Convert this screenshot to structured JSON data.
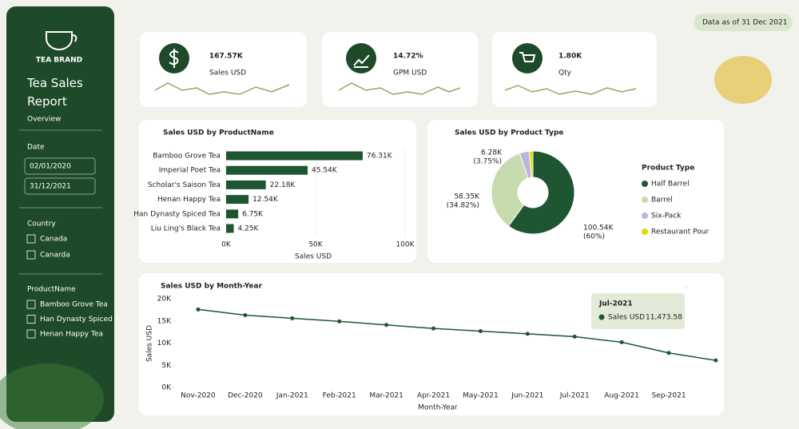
{
  "sidebar": {
    "brand": "TEA BRAND",
    "title": "Tea Sales Report",
    "subtitle": "Overview",
    "date_label": "Date",
    "date_from": "02/01/2020",
    "date_to": "31/12/2021",
    "country_label": "Country",
    "countries": [
      "Canada",
      "Canarda"
    ],
    "product_label": "ProductName",
    "products": [
      "Bamboo Grove Tea",
      "Han Dynasty Spiced T...",
      "Henan Happy Tea"
    ]
  },
  "badge": "Data as of 31 Dec 2021",
  "kpis": [
    {
      "value": "167.57K",
      "label": "Sales USD"
    },
    {
      "value": "14.72%",
      "label": "GPM USD"
    },
    {
      "value": "1.80K",
      "label": "Qty"
    }
  ],
  "bar_chart": {
    "type": "bar",
    "title": "Sales USD by ProductName",
    "xlabel": "Sales USD",
    "color": "#1e5631",
    "categories": [
      "Bamboo Grove Tea",
      "Imperial Poet Tea",
      "Scholar's Saison Tea",
      "Henan Happy Tea",
      "Han Dynasty Spiced Tea",
      "Liu Ling's Black Tea"
    ],
    "values": [
      76310,
      45540,
      22180,
      12540,
      6750,
      4250
    ],
    "value_labels": [
      "76.31K",
      "45.54K",
      "22.18K",
      "12.54K",
      "6.75K",
      "4.25K"
    ],
    "xlim": [
      0,
      100000
    ],
    "xticks": [
      {
        "value": 0,
        "label": "0K"
      },
      {
        "value": 50000,
        "label": "50K"
      },
      {
        "value": 100000,
        "label": "100K"
      }
    ]
  },
  "donut_chart": {
    "type": "donut",
    "title": "Sales USD by Product Type",
    "legend_title": "Product Type",
    "categories": [
      "Half Barrel",
      "Barrel",
      "Six-Pack",
      "Restaurant Pour"
    ],
    "values": [
      100540,
      58350,
      6280,
      2400
    ],
    "value_labels": [
      "100.54K",
      "58.35K",
      "6.28K",
      null
    ],
    "percent_labels": [
      "(60%)",
      "(34.82%)",
      "(3.75%)",
      null
    ],
    "colors": [
      "#1e5631",
      "#c8dbae",
      "#bcb7da",
      "#e6d800"
    ]
  },
  "line_chart": {
    "type": "line",
    "title": "Sales USD by Month-Year",
    "xlabel": "Month-Year",
    "ylabel": "Sales USD",
    "categories": [
      "Nov-2020",
      "Dec-2020",
      "Jan-2021",
      "Feb-2021",
      "Mar-2021",
      "Apr-2021",
      "May-2021",
      "Jun-2021",
      "Jul-2021",
      "Aug-2021",
      "Sep-2021",
      null
    ],
    "series": [
      {
        "name": "Sales USD",
        "color": "#1e5631",
        "values": [
          17600,
          16300,
          15600,
          14900,
          14100,
          13300,
          12700,
          12100,
          11473.58,
          10200,
          7800,
          6100
        ]
      }
    ],
    "ylim": [
      0,
      20000
    ],
    "yticks": [
      {
        "value": 0,
        "label": "0K"
      },
      {
        "value": 5000,
        "label": "5K"
      },
      {
        "value": 10000,
        "label": "10K"
      },
      {
        "value": 15000,
        "label": "15K"
      },
      {
        "value": 20000,
        "label": "20K"
      }
    ],
    "tooltip": {
      "title": "Jul-2021",
      "series": "Sales USD",
      "value_label": "11,473.58"
    }
  }
}
